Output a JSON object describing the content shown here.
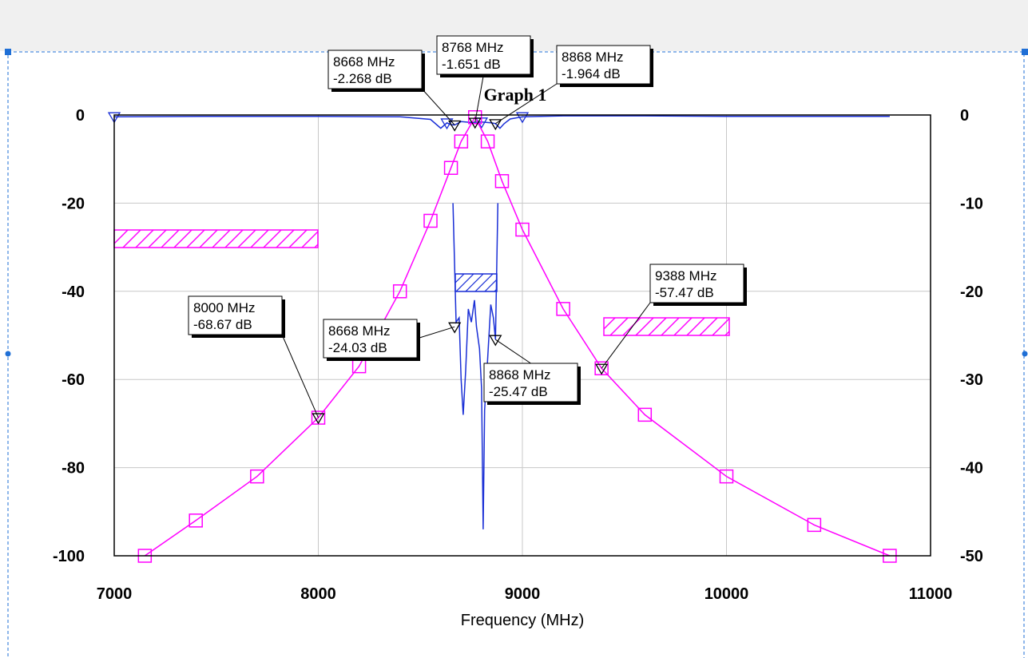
{
  "chart_data": {
    "type": "line",
    "title": "Graph 1",
    "xlabel": "Frequency (MHz)",
    "xlim": [
      7000,
      11000
    ],
    "ylim_left": [
      -100,
      0
    ],
    "ylim_right": [
      -50,
      0
    ],
    "x_ticks": [
      "7000",
      "8000",
      "9000",
      "10000",
      "11000"
    ],
    "y_ticks_left": [
      "0",
      "-20",
      "-40",
      "-60",
      "-80",
      "-100"
    ],
    "y_ticks_right": [
      "0",
      "-10",
      "-20",
      "-30",
      "-40",
      "-50"
    ],
    "grid": true,
    "colors": {
      "blue": "#1a2fd6",
      "magenta": "#ff00ff",
      "grid": "#c8c8c8"
    },
    "series": [
      {
        "color": "#1a2fd6",
        "axis": "left",
        "marker": "triangle",
        "x": [
          7000,
          7500,
          8000,
          8400,
          8550,
          8600,
          8630,
          8650,
          8668,
          8700,
          8750,
          8768,
          8800,
          8850,
          8868,
          8890,
          8910,
          8940,
          9000,
          9200,
          9600,
          10000,
          10500,
          10800
        ],
        "y": [
          -0.4,
          -0.3,
          -0.3,
          -0.4,
          -1.0,
          -3.0,
          -1.8,
          -2.2,
          -2.27,
          -1.5,
          -1.7,
          -1.65,
          -1.6,
          -1.8,
          -1.96,
          -3.0,
          -2.0,
          -0.9,
          -0.4,
          -0.2,
          -0.2,
          -0.3,
          -0.3,
          -0.3
        ]
      },
      {
        "color": "#1a2fd6",
        "axis": "left",
        "x": [
          8660,
          8675,
          8690,
          8700,
          8710,
          8722,
          8735,
          8750,
          8765,
          8775,
          8790,
          8800,
          8808,
          8815,
          8830,
          8845,
          8858,
          8868,
          8880
        ],
        "y": [
          -20.0,
          -47.0,
          -46.0,
          -60.0,
          -68.0,
          -58.0,
          -44.0,
          -47.0,
          -42.0,
          -48.0,
          -53.0,
          -62.0,
          -94.0,
          -67.0,
          -55.0,
          -43.0,
          -46.0,
          -50.9,
          -20.0
        ]
      },
      {
        "color": "#ff00ff",
        "axis": "left",
        "marker": "square",
        "x": [
          7150,
          7400,
          7700,
          8000,
          8200,
          8400,
          8550,
          8650,
          8700,
          8768,
          8830,
          8900,
          9000,
          9200,
          9388,
          9600,
          10000,
          10430,
          10800
        ],
        "y": [
          -100.0,
          -92.0,
          -82.0,
          -68.67,
          -57.0,
          -40.0,
          -24.0,
          -12.0,
          -6.0,
          -0.5,
          -6.0,
          -15.0,
          -26.0,
          -44.0,
          -57.47,
          -68.0,
          -82.0,
          -93.0,
          -100.0
        ]
      }
    ],
    "annotations": [
      {
        "line1": "8668 MHz",
        "line2": "-2.268 dB"
      },
      {
        "line1": "8768 MHz",
        "line2": "-1.651 dB"
      },
      {
        "line1": "8868 MHz",
        "line2": "-1.964 dB"
      },
      {
        "line1": "8000 MHz",
        "line2": "-68.67 dB"
      },
      {
        "line1": "8668 MHz",
        "line2": "-24.03 dB"
      },
      {
        "line1": "8868 MHz",
        "line2": "-25.47 dB"
      },
      {
        "line1": "9388 MHz",
        "line2": "-57.47 dB"
      }
    ]
  }
}
